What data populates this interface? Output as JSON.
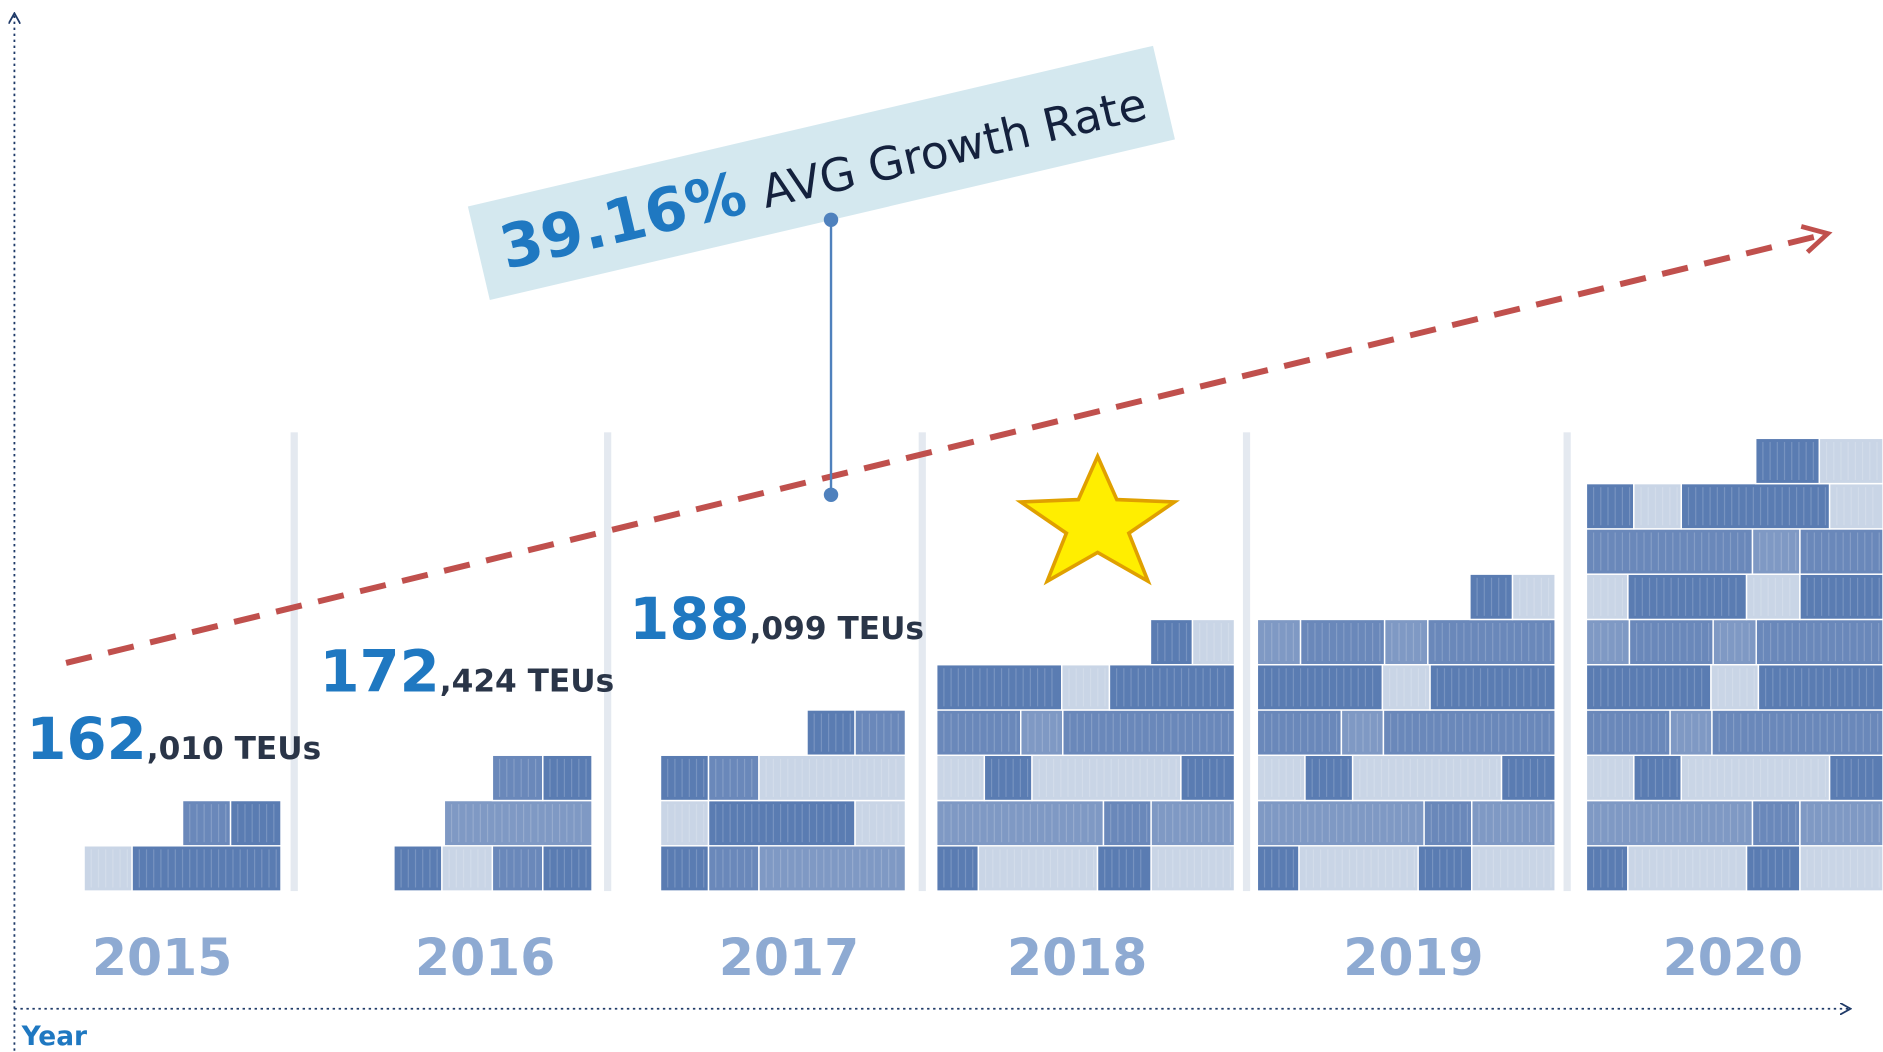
{
  "callout": {
    "rate": "39.16%",
    "text": "AVG Growth Rate"
  },
  "axis": {
    "x_label": "Year"
  },
  "years": [
    "2015",
    "2016",
    "2017",
    "2018",
    "2019",
    "2020"
  ],
  "volumes": [
    {
      "lead": "162",
      "rest": ",010 TEUs"
    },
    {
      "lead": "172",
      "rest": ",424 TEUs"
    },
    {
      "lead": "188",
      "rest": ",099 TEUs"
    }
  ]
}
